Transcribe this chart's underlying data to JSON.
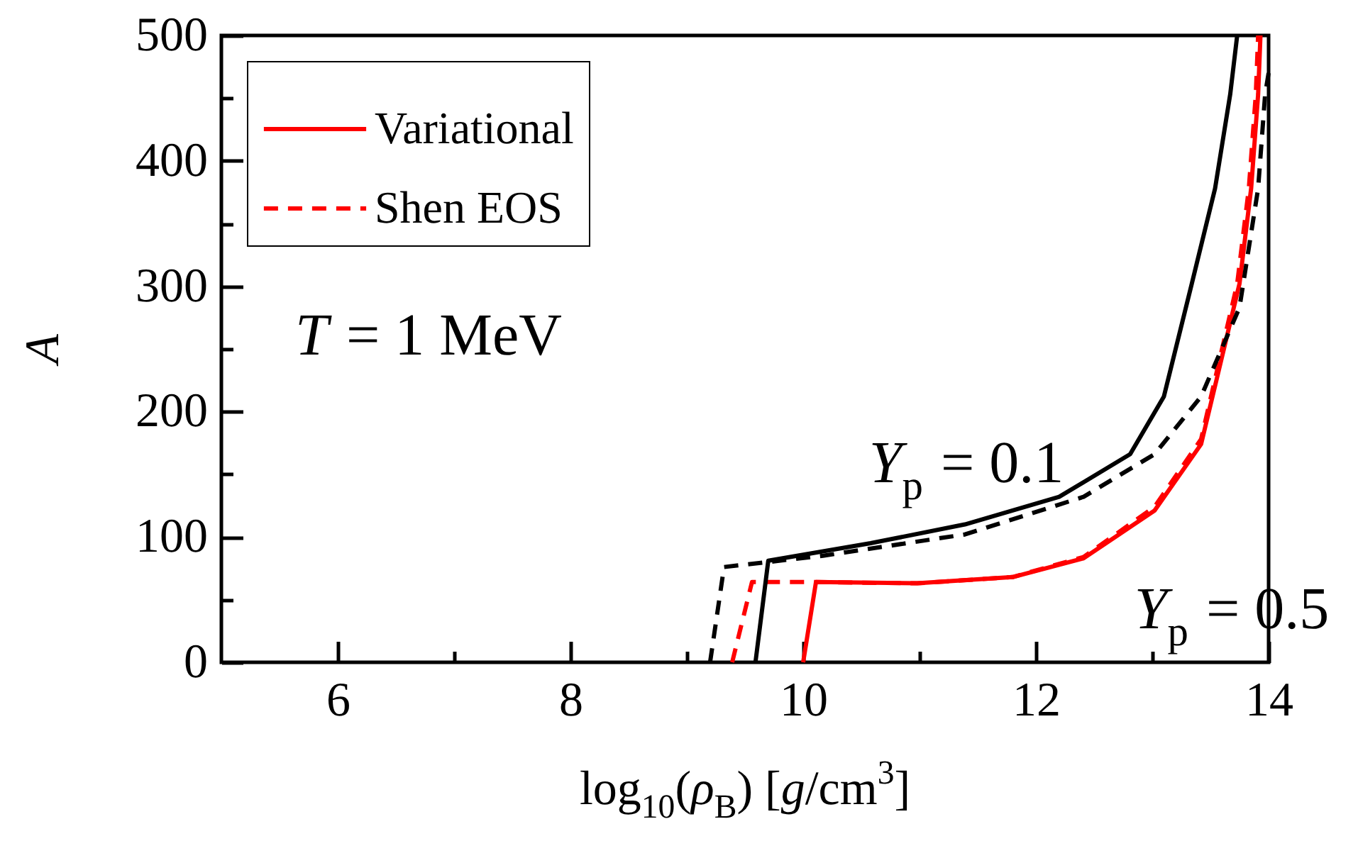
{
  "chart_data": {
    "type": "line",
    "xlabel": "log$_{10}$(ρ$_{B}$) [g/cm$^{3}$]",
    "ylabel": "A",
    "xlim": [
      5,
      14
    ],
    "ylim": [
      0,
      500
    ],
    "xticks": [
      6,
      {
        "value": 7,
        "label": null
      },
      8,
      {
        "value": 9,
        "label": null
      },
      10,
      {
        "value": 11,
        "label": null
      },
      12,
      {
        "value": 13,
        "label": null
      },
      14
    ],
    "yticks": [
      0,
      {
        "value": 50,
        "label": null
      },
      100,
      {
        "value": 150,
        "label": null
      },
      200,
      {
        "value": 250,
        "label": null
      },
      300,
      {
        "value": 350,
        "label": null
      },
      400,
      {
        "value": 450,
        "label": null
      },
      500
    ],
    "legend": "top left",
    "grid": false,
    "annotations": [
      "T = 1 MeV",
      "Y$_{p}$ = 0.1",
      "Y$_{p}$ = 0.5"
    ],
    "series": [
      {
        "name": "Variational",
        "color": "#ff0000",
        "line_style": "solid",
        "x": [
          10.0,
          10.11,
          10.98,
          11.8,
          12.41,
          13.02,
          13.42,
          13.75,
          13.85,
          13.91,
          13.93
        ],
        "values": [
          0,
          64,
          63,
          68,
          83,
          121,
          174,
          302,
          378,
          453,
          500
        ]
      },
      {
        "name": "Shen EOS",
        "color": "#ff0000",
        "line_style": "dashed",
        "x": [
          9.39,
          9.56,
          10.11,
          10.98,
          11.8,
          12.41,
          13.02,
          13.42,
          13.73,
          13.83,
          13.89,
          13.91
        ],
        "values": [
          0,
          64,
          64,
          63,
          68,
          84,
          124,
          178,
          302,
          378,
          453,
          500
        ]
      },
      {
        "color": "#000000",
        "line_style": "solid",
        "x": [
          9.59,
          9.7,
          10.58,
          11.39,
          12.2,
          12.81,
          13.1,
          13.34,
          13.54,
          13.67,
          13.73
        ],
        "values": [
          0,
          81,
          95,
          110,
          132,
          166,
          212,
          302,
          378,
          453,
          500
        ]
      },
      {
        "color": "#000000",
        "line_style": "dashed",
        "x": [
          9.2,
          9.32,
          10.17,
          11.39,
          12.41,
          13.02,
          13.42,
          13.75,
          13.91,
          13.97,
          14.0
        ],
        "values": [
          0,
          76,
          85,
          102,
          132,
          166,
          212,
          283,
          378,
          453,
          470
        ]
      }
    ]
  }
}
